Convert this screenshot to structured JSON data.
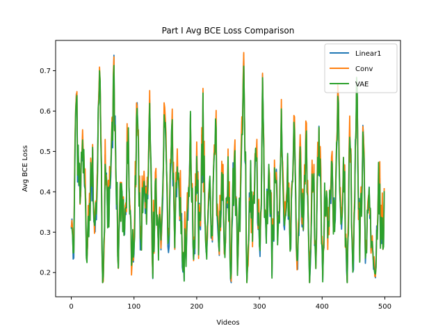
{
  "chart_data": {
    "type": "line",
    "title": "Part I Avg BCE Loss Comparison",
    "xlabel": "Videos",
    "ylabel": "Avg BCE Loss",
    "xlim": [
      -25,
      525
    ],
    "ylim": [
      0.14,
      0.775
    ],
    "xticks": [
      0,
      100,
      200,
      300,
      400,
      500
    ],
    "yticks": [
      0.2,
      0.3,
      0.4,
      0.5,
      0.6,
      0.7
    ],
    "ytick_labels": [
      "0.2",
      "0.3",
      "0.4",
      "0.5",
      "0.6",
      "0.7"
    ],
    "grid": false,
    "legend": "top-right",
    "n_points": 500,
    "anchors": {
      "x": [
        0,
        3,
        8,
        12,
        18,
        25,
        33,
        40,
        45,
        50,
        55,
        60,
        68,
        75,
        80,
        85,
        90,
        95,
        100,
        105,
        110,
        115,
        120,
        125,
        130,
        135,
        140,
        145,
        150,
        155,
        160,
        165,
        170,
        178,
        185,
        190,
        195,
        200,
        205,
        210,
        215,
        220,
        225,
        230,
        235,
        240,
        245,
        250,
        255,
        260,
        265,
        270,
        275,
        280,
        285,
        290,
        295,
        300,
        305,
        310,
        315,
        320,
        325,
        330,
        335,
        340,
        345,
        350,
        355,
        360,
        365,
        370,
        375,
        380,
        385,
        390,
        395,
        400,
        405,
        410,
        415,
        420,
        425,
        430,
        435,
        440,
        445,
        450,
        455,
        460,
        465,
        470,
        475,
        480,
        485,
        490,
        495,
        499
      ],
      "y": [
        0.28,
        0.22,
        0.6,
        0.4,
        0.5,
        0.22,
        0.45,
        0.26,
        0.74,
        0.19,
        0.46,
        0.3,
        0.65,
        0.21,
        0.45,
        0.25,
        0.52,
        0.3,
        0.22,
        0.64,
        0.26,
        0.44,
        0.32,
        0.55,
        0.24,
        0.42,
        0.28,
        0.38,
        0.62,
        0.23,
        0.58,
        0.27,
        0.48,
        0.18,
        0.33,
        0.52,
        0.24,
        0.44,
        0.27,
        0.56,
        0.22,
        0.4,
        0.3,
        0.6,
        0.2,
        0.48,
        0.28,
        0.42,
        0.22,
        0.5,
        0.26,
        0.38,
        0.68,
        0.23,
        0.44,
        0.3,
        0.52,
        0.2,
        0.62,
        0.26,
        0.5,
        0.22,
        0.46,
        0.29,
        0.55,
        0.24,
        0.43,
        0.27,
        0.6,
        0.22,
        0.48,
        0.3,
        0.52,
        0.2,
        0.45,
        0.28,
        0.58,
        0.2,
        0.4,
        0.26,
        0.48,
        0.24,
        0.62,
        0.3,
        0.42,
        0.23,
        0.55,
        0.18,
        0.65,
        0.28,
        0.5,
        0.24,
        0.38,
        0.31,
        0.22,
        0.44,
        0.26,
        0.34
      ]
    },
    "series": [
      {
        "name": "Linear1",
        "color": "#1f77b4",
        "offset": 0.0,
        "noise": 0.08
      },
      {
        "name": "Conv",
        "color": "#ff7f0e",
        "offset": 0.02,
        "noise": 0.09
      },
      {
        "name": "VAE",
        "color": "#2ca02c",
        "offset": 0.0,
        "noise": 0.08
      }
    ]
  }
}
